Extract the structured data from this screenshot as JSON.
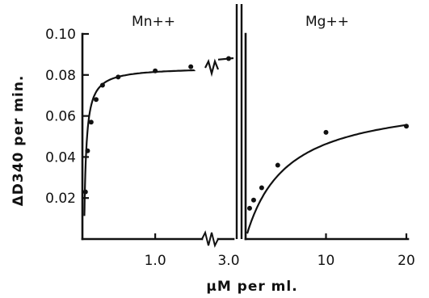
{
  "chart_data": [
    {
      "type": "scatter",
      "panel": "left",
      "title": "Mn++",
      "ylabel": "ΔD340 per min.",
      "ylim": [
        0,
        0.1
      ],
      "yticks": [
        "0.02",
        "0.04",
        "0.06",
        "0.08",
        "0.10"
      ],
      "yticks_values": [
        0.02,
        0.04,
        0.06,
        0.08,
        0.1
      ],
      "xlim": [
        0,
        1.6
      ],
      "xticks": [
        "1.0"
      ],
      "xticks_values": [
        1.0
      ],
      "break_label": "3.0",
      "points": [
        {
          "x": 0.02,
          "y": 0.023
        },
        {
          "x": 0.05,
          "y": 0.043
        },
        {
          "x": 0.1,
          "y": 0.057
        },
        {
          "x": 0.17,
          "y": 0.068
        },
        {
          "x": 0.26,
          "y": 0.075
        },
        {
          "x": 0.48,
          "y": 0.079
        },
        {
          "x": 1.0,
          "y": 0.082
        },
        {
          "x": 1.5,
          "y": 0.084
        }
      ],
      "break_point": {
        "x": 3.0,
        "y": 0.088
      }
    },
    {
      "type": "scatter",
      "panel": "right",
      "title": "Mg++",
      "xlim": [
        0,
        20
      ],
      "xticks": [
        "10",
        "20"
      ],
      "xticks_values": [
        10,
        20
      ],
      "points": [
        {
          "x": 0.5,
          "y": 0.015
        },
        {
          "x": 1.0,
          "y": 0.019
        },
        {
          "x": 2.0,
          "y": 0.025
        },
        {
          "x": 4.0,
          "y": 0.036
        },
        {
          "x": 10.0,
          "y": 0.052
        },
        {
          "x": 20.0,
          "y": 0.055
        }
      ]
    }
  ],
  "xlabel": "μM per ml."
}
